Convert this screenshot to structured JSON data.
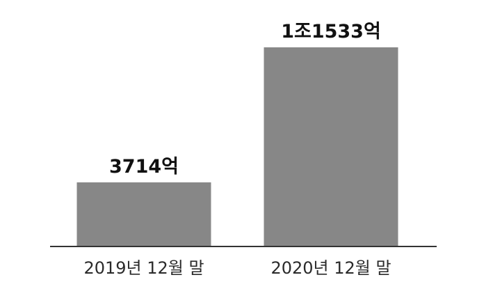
{
  "chart_data": {
    "type": "bar",
    "categories": [
      "2019년 12월 말",
      "2020년 12월 말"
    ],
    "values": [
      3714,
      11533
    ],
    "data_labels": [
      "3714억",
      "1조1533억"
    ],
    "title": "",
    "xlabel": "",
    "ylabel": "",
    "ylim": [
      0,
      12500
    ],
    "grid": false,
    "legend": "none",
    "colors": {
      "bar": "#878787",
      "axis": "#333333",
      "background": "#ffffff"
    }
  }
}
